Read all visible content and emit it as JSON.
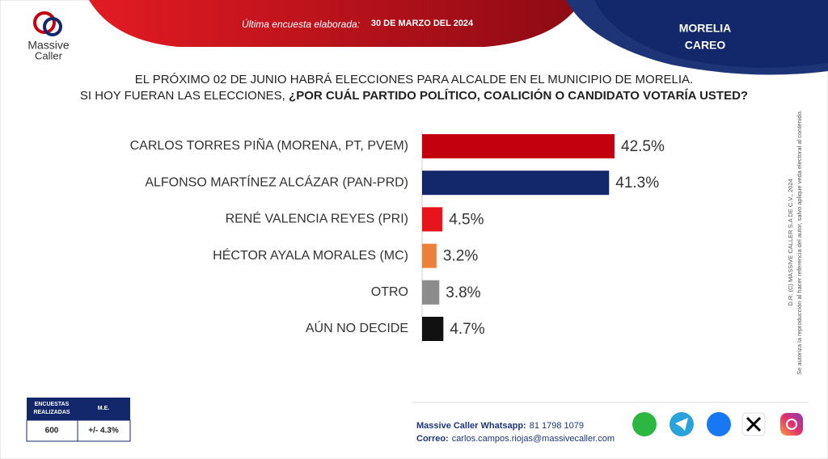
{
  "logo": {
    "line1": "Massive",
    "line2": "Caller"
  },
  "header": {
    "label": "Última encuesta elaborada:",
    "date": "30 DE MARZO DEL 2024",
    "place": "MORELIA",
    "kind": "CAREO"
  },
  "question": {
    "line1": "EL PRÓXIMO 02 DE JUNIO HABRÁ ELECCIONES PARA ALCALDE EN EL MUNICIPIO DE MORELIA.",
    "line2a": "SI HOY FUERAN LAS ELECCIONES, ",
    "line2b": "¿POR CUÁL PARTIDO POLÍTICO, COALICIÓN O CANDIDATO VOTARÍA USTED?"
  },
  "chart_data": {
    "type": "hbar",
    "categories": [
      "CARLOS TORRES PIÑA (MORENA, PT, PVEM)",
      "ALFONSO MARTÍNEZ ALCÁZAR (PAN-PRD)",
      "RENÉ VALENCIA REYES (PRI)",
      "HÉCTOR AYALA MORALES (MC)",
      "OTRO",
      "AÚN NO DECIDE"
    ],
    "values": [
      42.5,
      41.3,
      4.5,
      3.2,
      3.8,
      4.7
    ],
    "value_labels": [
      "42.5%",
      "41.3%",
      "4.5%",
      "3.2%",
      "3.8%",
      "4.7%"
    ],
    "colors": [
      "#c3000e",
      "#13286b",
      "#e8141b",
      "#ec7f3a",
      "#8c8c8c",
      "#111111"
    ]
  },
  "side_note": {
    "line1": "D.R. (C) MASSIVE CALLER S.A DE C.V., 2024",
    "line2": "Se autoriza la reproducción al hacer referencia del autor, salvo aplique veda electoral al contenido."
  },
  "survey_table": {
    "head1a": "ENCUESTAS",
    "head1b": "REALIZADAS",
    "head2": "M.E.",
    "count": "600",
    "margin": "+/- 4.3%"
  },
  "footer": {
    "wa_label": "Massive Caller Whatsapp:",
    "wa_number": "81 1798 1079",
    "mail_label": "Correo:",
    "mail": "carlos.campos.riojas@massivecaller.com"
  }
}
